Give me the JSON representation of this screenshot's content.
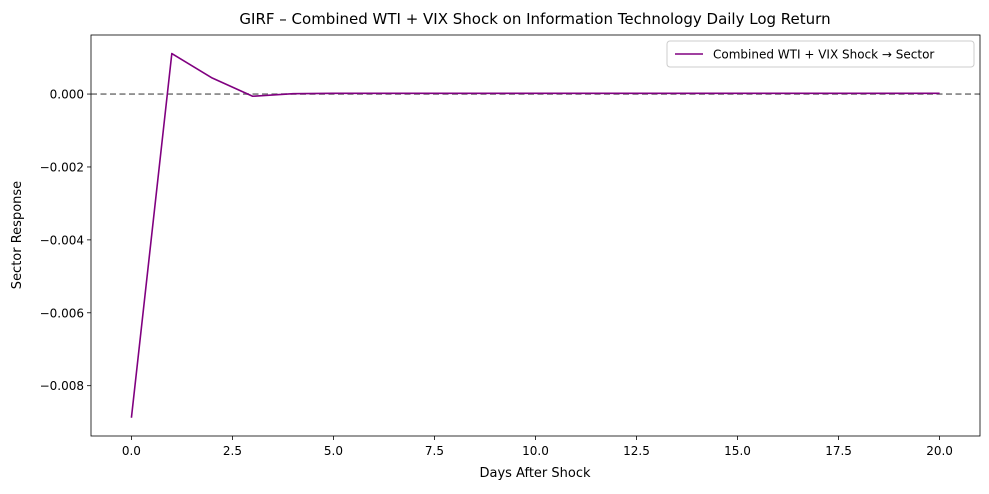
{
  "chart_data": {
    "type": "line",
    "title": "GIRF – Combined WTI + VIX Shock on Information Technology Daily Log Return",
    "xlabel": "Days After Shock",
    "ylabel": "Sector Response",
    "xlim": [
      -1.0,
      21.0
    ],
    "ylim": [
      -0.00938,
      0.00162
    ],
    "x_ticks": [
      0.0,
      2.5,
      5.0,
      7.5,
      10.0,
      12.5,
      15.0,
      17.5,
      20.0
    ],
    "x_tick_labels": [
      "0.0",
      "2.5",
      "5.0",
      "7.5",
      "10.0",
      "12.5",
      "15.0",
      "17.5",
      "20.0"
    ],
    "y_ticks": [
      0.0,
      -0.002,
      -0.004,
      -0.006,
      -0.008
    ],
    "y_tick_labels": [
      "0.000",
      "−0.002",
      "−0.004",
      "−0.006",
      "−0.008"
    ],
    "reference_line": {
      "y": 0.0,
      "style": "dashed",
      "color": "#808080"
    },
    "legend_position": "top-right",
    "grid": false,
    "x": [
      0,
      1,
      2,
      3,
      4,
      5,
      6,
      7,
      8,
      9,
      10,
      11,
      12,
      13,
      14,
      15,
      16,
      17,
      18,
      19,
      20
    ],
    "series": [
      {
        "name": "Combined WTI + VIX Shock → Sector",
        "color": "#800080",
        "values": [
          -0.00888,
          0.00111,
          0.00044,
          -6e-05,
          1e-05,
          2e-05,
          2e-05,
          2e-05,
          2e-05,
          2e-05,
          2e-05,
          2e-05,
          2e-05,
          2e-05,
          2e-05,
          2e-05,
          2e-05,
          2e-05,
          2e-05,
          2e-05,
          2e-05
        ]
      }
    ]
  }
}
